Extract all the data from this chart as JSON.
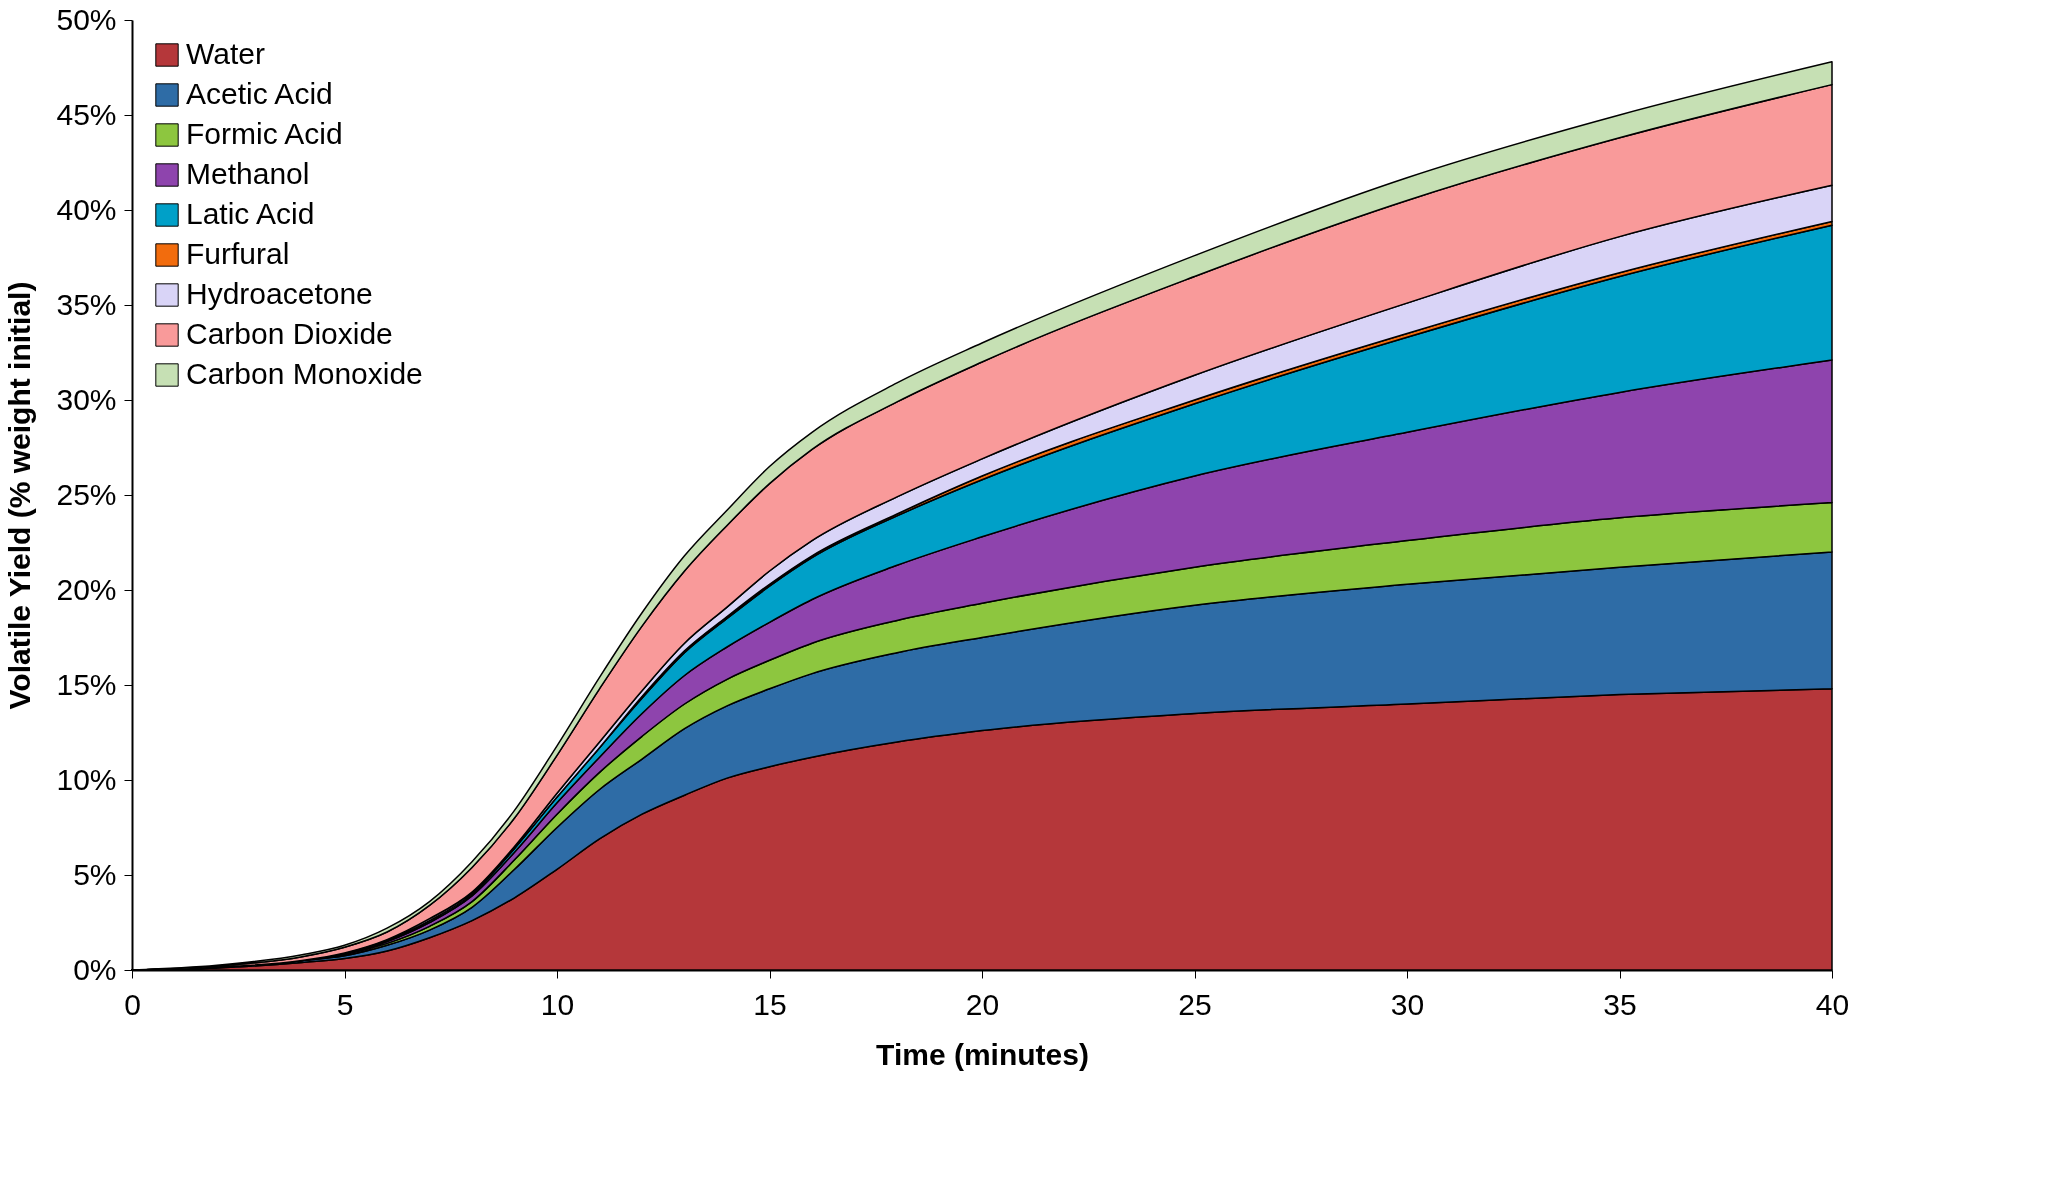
{
  "chart_data": {
    "type": "area",
    "stacked": true,
    "xlabel": "Time (minutes)",
    "ylabel": "Volatile Yield (% weight initial)",
    "x": [
      0,
      2,
      4,
      5,
      6,
      7,
      8,
      9,
      10,
      11,
      12,
      13,
      14,
      15,
      16,
      18,
      20,
      25,
      30,
      35,
      40
    ],
    "xlim": [
      0,
      40
    ],
    "xticks": [
      0,
      5,
      10,
      15,
      20,
      25,
      30,
      35,
      40
    ],
    "ylim": [
      0,
      50
    ],
    "yticks": [
      {
        "value": 0,
        "label": "0%"
      },
      {
        "value": 5,
        "label": "5%"
      },
      {
        "value": 10,
        "label": "10%"
      },
      {
        "value": 15,
        "label": "15%"
      },
      {
        "value": 20,
        "label": "20%"
      },
      {
        "value": 25,
        "label": "25%"
      },
      {
        "value": 30,
        "label": "30%"
      },
      {
        "value": 35,
        "label": "35%"
      },
      {
        "value": 40,
        "label": "40%"
      },
      {
        "value": 45,
        "label": "45%"
      },
      {
        "value": 50,
        "label": "50%"
      }
    ],
    "grid": false,
    "legend": "top left",
    "series": [
      {
        "name": "Water",
        "color": "#b5373a",
        "values": [
          0,
          0.1,
          0.4,
          0.6,
          1.0,
          1.7,
          2.6,
          3.8,
          5.3,
          6.9,
          8.2,
          9.2,
          10.1,
          10.7,
          11.2,
          12.0,
          12.6,
          13.5,
          14.0,
          14.5,
          14.8
        ]
      },
      {
        "name": "Acetic Acid",
        "color": "#2e6ca6",
        "values": [
          0,
          0.05,
          0.1,
          0.15,
          0.3,
          0.4,
          0.7,
          1.5,
          2.2,
          2.6,
          2.9,
          3.5,
          3.8,
          4.1,
          4.4,
          4.7,
          4.9,
          5.7,
          6.3,
          6.7,
          7.2
        ]
      },
      {
        "name": "Formic Acid",
        "color": "#8dc63f",
        "values": [
          0,
          0,
          0,
          0.05,
          0.1,
          0.2,
          0.3,
          0.5,
          0.7,
          0.9,
          1.2,
          1.3,
          1.4,
          1.5,
          1.6,
          1.7,
          1.8,
          2.0,
          2.3,
          2.6,
          2.6
        ]
      },
      {
        "name": "Methanol",
        "color": "#8e44ad",
        "values": [
          0,
          0,
          0,
          0.05,
          0.1,
          0.2,
          0.3,
          0.4,
          0.6,
          0.8,
          1.2,
          1.5,
          1.7,
          2.0,
          2.3,
          2.9,
          3.5,
          4.8,
          5.7,
          6.6,
          7.5
        ]
      },
      {
        "name": "Latic Acid",
        "color": "#00a0c8",
        "values": [
          0,
          0,
          0,
          0.05,
          0.05,
          0.1,
          0.1,
          0.2,
          0.3,
          0.5,
          0.8,
          1.2,
          1.5,
          1.9,
          2.2,
          2.6,
          3.0,
          3.8,
          5.0,
          6.1,
          7.1
        ]
      },
      {
        "name": "Furfural",
        "color": "#f26c0d",
        "values": [
          0,
          0,
          0,
          0,
          0,
          0,
          0,
          0,
          0,
          0,
          0.1,
          0.1,
          0.1,
          0.1,
          0.1,
          0.1,
          0.2,
          0.2,
          0.2,
          0.2,
          0.2
        ]
      },
      {
        "name": "Hydroacetone",
        "color": "#d9d4f7",
        "values": [
          0,
          0,
          0,
          0,
          0.05,
          0.1,
          0.1,
          0.1,
          0.2,
          0.3,
          0.3,
          0.4,
          0.5,
          0.7,
          0.8,
          0.9,
          0.9,
          1.3,
          1.6,
          1.9,
          1.9
        ]
      },
      {
        "name": "Carbon Dioxide",
        "color": "#f99a9a",
        "values": [
          0,
          0.05,
          0.2,
          0.3,
          0.4,
          0.7,
          1.3,
          1.5,
          2.0,
          2.8,
          3.4,
          3.8,
          4.3,
          4.6,
          4.8,
          5.0,
          5.1,
          5.2,
          5.4,
          5.2,
          5.3
        ]
      },
      {
        "name": "Carbon Monoxide",
        "color": "#c6e0b4",
        "values": [
          0,
          0.05,
          0.1,
          0.1,
          0.2,
          0.2,
          0.3,
          0.4,
          0.5,
          0.6,
          0.7,
          0.8,
          0.8,
          0.9,
          0.9,
          1.0,
          1.0,
          1.1,
          1.2,
          1.2,
          1.2
        ]
      }
    ]
  }
}
